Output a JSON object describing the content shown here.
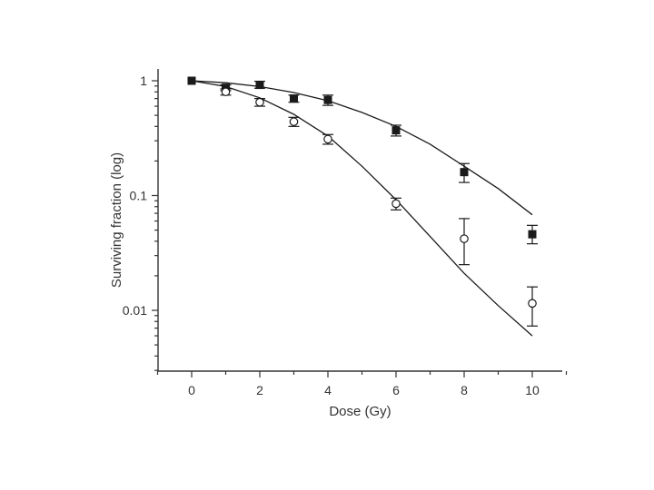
{
  "chart_data": {
    "type": "scatter",
    "title": "",
    "xlabel": "Dose (Gy)",
    "ylabel": "Surviving fraction (log)",
    "xlim": [
      -1,
      11
    ],
    "ylim": [
      0.003,
      1.2
    ],
    "yscale": "log",
    "grid": false,
    "x_ticks": [
      0,
      2,
      4,
      6,
      8,
      10
    ],
    "x_tick_labels": [
      "0",
      "2",
      "4",
      "6",
      "8",
      "10"
    ],
    "y_ticks": [
      1,
      0.1,
      0.01
    ],
    "y_tick_labels": [
      "1",
      "0.1",
      "0.01"
    ],
    "series": [
      {
        "name": "filled squares",
        "marker": "square-filled",
        "x": [
          0,
          1,
          2,
          3,
          4,
          6,
          8,
          10
        ],
        "y": [
          1.0,
          0.87,
          0.92,
          0.7,
          0.68,
          0.37,
          0.16,
          0.046
        ],
        "err_low": [
          0.0,
          0.05,
          0.06,
          0.05,
          0.07,
          0.04,
          0.03,
          0.008
        ],
        "err_high": [
          0.0,
          0.05,
          0.07,
          0.05,
          0.07,
          0.04,
          0.03,
          0.009
        ],
        "fit_x": [
          0,
          1,
          2,
          3,
          4,
          5,
          6,
          7,
          8,
          9,
          10
        ],
        "fit_y": [
          1.0,
          0.96,
          0.89,
          0.79,
          0.67,
          0.53,
          0.4,
          0.28,
          0.18,
          0.115,
          0.068
        ],
        "color": "#1a1a1a"
      },
      {
        "name": "open circles",
        "marker": "circle-open",
        "x": [
          1,
          2,
          3,
          4,
          6,
          8,
          10
        ],
        "y": [
          0.8,
          0.65,
          0.44,
          0.31,
          0.085,
          0.042,
          0.0115
        ],
        "err_low": [
          0.05,
          0.05,
          0.04,
          0.03,
          0.01,
          0.017,
          0.0042
        ],
        "err_high": [
          0.05,
          0.05,
          0.04,
          0.03,
          0.01,
          0.021,
          0.0045
        ],
        "fit_x": [
          0,
          1,
          2,
          3,
          4,
          5,
          6,
          7,
          8,
          9,
          10
        ],
        "fit_y": [
          1.0,
          0.89,
          0.71,
          0.51,
          0.33,
          0.18,
          0.092,
          0.044,
          0.021,
          0.011,
          0.006
        ],
        "color": "#1a1a1a"
      }
    ]
  }
}
